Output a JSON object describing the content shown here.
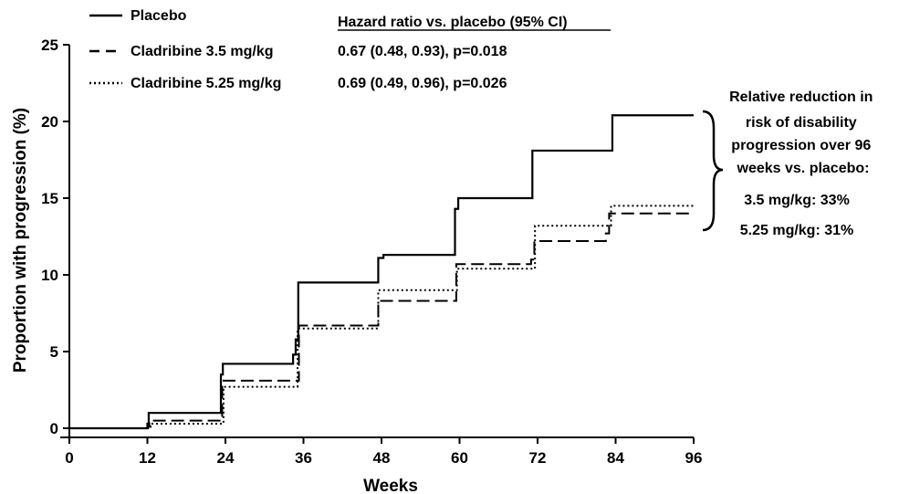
{
  "chart_data": {
    "type": "line",
    "xlabel": "Weeks",
    "ylabel": "Proportion with progression (%)",
    "xlim": [
      0,
      96
    ],
    "ylim": [
      0,
      25
    ],
    "x_ticks": [
      "0",
      "12",
      "24",
      "36",
      "48",
      "60",
      "72",
      "84",
      "96"
    ],
    "y_ticks": [
      "0",
      "5",
      "10",
      "15",
      "20",
      "25"
    ],
    "grid": false,
    "legend_placement": "top-left",
    "hazard_ratio_header": "Hazard ratio vs. placebo (95% CI)",
    "series": [
      {
        "name": "Placebo",
        "style": "solid",
        "hazard_ratio": "",
        "x": [
          0,
          12,
          12.2,
          23,
          23.3,
          23.6,
          34,
          34.4,
          34.8,
          35.2,
          47,
          47.5,
          48.3,
          59,
          59.3,
          59.8,
          70.8,
          71.2,
          83.0,
          83.5,
          96
        ],
        "y": [
          0,
          0.3,
          1.0,
          1.0,
          3.5,
          4.2,
          4.2,
          4.8,
          5.8,
          9.5,
          9.5,
          11.1,
          11.3,
          11.3,
          14.3,
          15.0,
          15.0,
          18.1,
          18.1,
          20.4,
          20.4
        ]
      },
      {
        "name": "Cladribine 3.5 mg/kg",
        "style": "dashed",
        "hazard_ratio": "0.67 (0.48, 0.93), p=0.018",
        "x": [
          0,
          12,
          12.3,
          23.2,
          23.5,
          34.8,
          35.3,
          47.2,
          47.5,
          59.0,
          59.5,
          71.0,
          71.5,
          82.5,
          83.0,
          96
        ],
        "y": [
          0,
          0.1,
          0.5,
          0.5,
          3.1,
          3.1,
          6.7,
          6.7,
          8.3,
          8.3,
          10.7,
          11.0,
          12.2,
          12.7,
          14.0,
          14.0
        ]
      },
      {
        "name": "Cladribine 5.25 mg/kg",
        "style": "dotted",
        "hazard_ratio": "0.69 (0.49, 0.96), p=0.026",
        "x": [
          0,
          12.1,
          12.5,
          23.3,
          23.7,
          34.6,
          35.1,
          47.1,
          47.5,
          59.1,
          59.6,
          71.1,
          71.6,
          82.8,
          83.3,
          96
        ],
        "y": [
          0,
          0.1,
          0.3,
          0.3,
          2.7,
          2.7,
          6.5,
          6.5,
          9.0,
          9.0,
          10.4,
          10.4,
          13.2,
          13.2,
          14.5,
          14.5
        ]
      }
    ],
    "annotation": {
      "heading": "Relative reduction in risk of disability progression over 96 weeks vs. placebo:",
      "heading_lines": [
        "Relative reduction in",
        "risk of disability",
        "progression over 96",
        "weeks vs. placebo:"
      ],
      "items": [
        "3.5 mg/kg: 33%",
        "5.25 mg/kg: 31%"
      ]
    }
  }
}
